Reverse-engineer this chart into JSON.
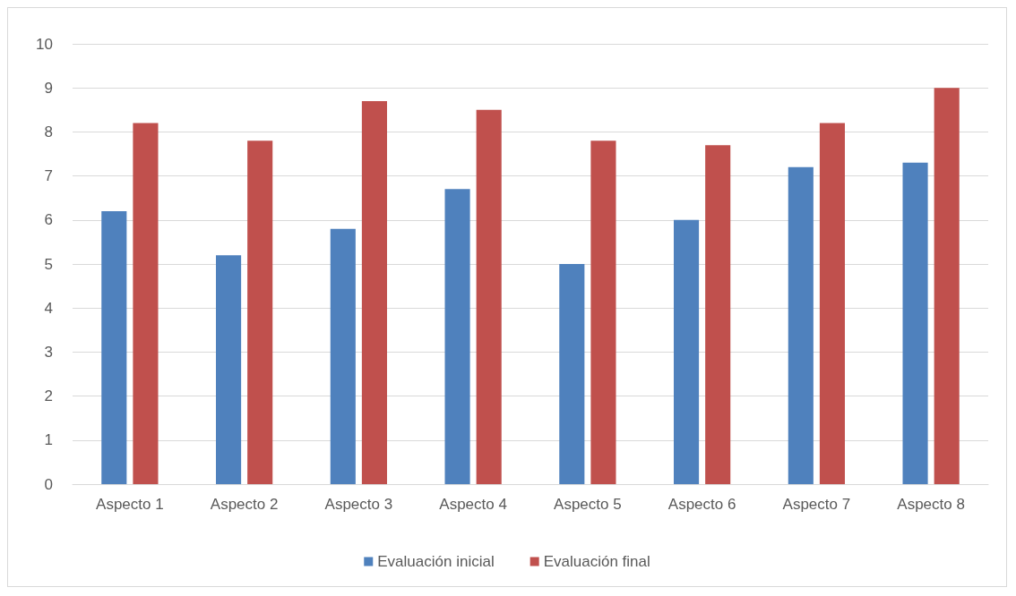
{
  "chart_data": {
    "type": "bar",
    "categories": [
      "Aspecto 1",
      "Aspecto 2",
      "Aspecto 3",
      "Aspecto 4",
      "Aspecto 5",
      "Aspecto 6",
      "Aspecto 7",
      "Aspecto 8"
    ],
    "series": [
      {
        "name": "Evaluación inicial",
        "color": "#4f81bd",
        "values": [
          6.2,
          5.2,
          5.8,
          6.7,
          5.0,
          6.0,
          7.2,
          7.3
        ]
      },
      {
        "name": "Evaluación final",
        "color": "#c0504d",
        "values": [
          8.2,
          7.8,
          8.7,
          8.5,
          7.8,
          7.7,
          8.2,
          9.0
        ]
      }
    ],
    "ylim": [
      0,
      10
    ],
    "yticks": [
      0,
      1,
      2,
      3,
      4,
      5,
      6,
      7,
      8,
      9,
      10
    ],
    "grid": "y",
    "legend": "bottom"
  }
}
